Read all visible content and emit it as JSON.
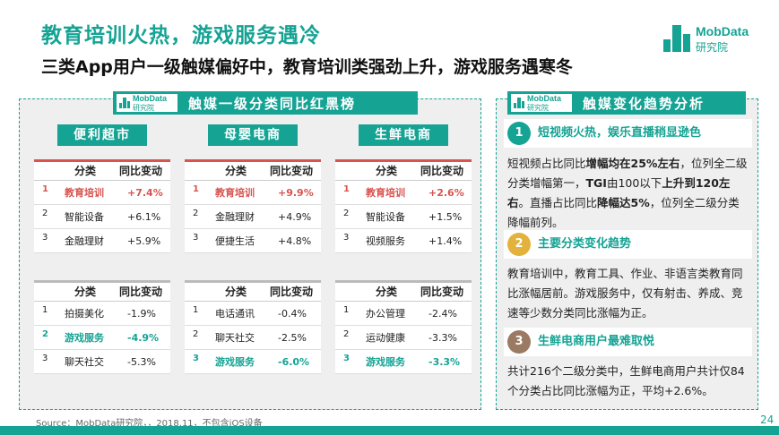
{
  "header": {
    "title": "教育培训火热，游戏服务遇冷",
    "subtitle": "三类App用户一级触媒偏好中，教育培训类强劲上升，游戏服务遇寒冬"
  },
  "logo": {
    "brand": "MobData",
    "sub": "研究院"
  },
  "left_panel": {
    "header_logo": {
      "brand": "MobData",
      "sub": "研究院"
    },
    "header_text": "触媒一级分类同比红黑榜",
    "categories": [
      {
        "label": "便利超市",
        "red_table": {
          "col1": "分类",
          "col2": "同比变动",
          "rows": [
            {
              "n": "1",
              "name": "教育培训",
              "value": "+7.4%"
            },
            {
              "n": "2",
              "name": "智能设备",
              "value": "+6.1%"
            },
            {
              "n": "3",
              "name": "金融理财",
              "value": "+5.9%"
            }
          ]
        },
        "black_table": {
          "col1": "分类",
          "col2": "同比变动",
          "rows": [
            {
              "n": "1",
              "name": "拍摄美化",
              "value": "-1.9%"
            },
            {
              "n": "2",
              "name": "游戏服务",
              "value": "-4.9%"
            },
            {
              "n": "3",
              "name": "聊天社交",
              "value": "-5.3%"
            }
          ]
        }
      },
      {
        "label": "母婴电商",
        "red_table": {
          "col1": "分类",
          "col2": "同比变动",
          "rows": [
            {
              "n": "1",
              "name": "教育培训",
              "value": "+9.9%"
            },
            {
              "n": "2",
              "name": "金融理财",
              "value": "+4.9%"
            },
            {
              "n": "3",
              "name": "便捷生活",
              "value": "+4.8%"
            }
          ]
        },
        "black_table": {
          "col1": "分类",
          "col2": "同比变动",
          "rows": [
            {
              "n": "1",
              "name": "电话通讯",
              "value": "-0.4%"
            },
            {
              "n": "2",
              "name": "聊天社交",
              "value": "-2.5%"
            },
            {
              "n": "3",
              "name": "游戏服务",
              "value": "-6.0%"
            }
          ]
        }
      },
      {
        "label": "生鲜电商",
        "red_table": {
          "col1": "分类",
          "col2": "同比变动",
          "rows": [
            {
              "n": "1",
              "name": "教育培训",
              "value": "+2.6%"
            },
            {
              "n": "2",
              "name": "智能设备",
              "value": "+1.5%"
            },
            {
              "n": "3",
              "name": "视频服务",
              "value": "+1.4%"
            }
          ]
        },
        "black_table": {
          "col1": "分类",
          "col2": "同比变动",
          "rows": [
            {
              "n": "1",
              "name": "办公管理",
              "value": "-2.4%"
            },
            {
              "n": "2",
              "name": "运动健康",
              "value": "-3.3%"
            },
            {
              "n": "3",
              "name": "游戏服务",
              "value": "-3.3%"
            }
          ]
        }
      }
    ]
  },
  "right_panel": {
    "header_logo": {
      "brand": "MobData",
      "sub": "研究院"
    },
    "header_text": "触媒变化趋势分析",
    "sections": [
      {
        "num": "1",
        "color": "#15a394",
        "title": "短视频火热，娱乐直播稍显逊色",
        "body": [
          {
            "t": "短视频占比同比",
            "b": false
          },
          {
            "t": "增幅均在25%左右",
            "b": true
          },
          {
            "t": "，位列全二级分类增幅第一，",
            "b": false
          },
          {
            "t": "TGI",
            "b": true
          },
          {
            "t": "由100以下",
            "b": false
          },
          {
            "t": "上升到120左右",
            "b": true
          },
          {
            "t": "。直播占比同比",
            "b": false
          },
          {
            "t": "降幅达5%",
            "b": true
          },
          {
            "t": "，位列全二级分类降幅前列。",
            "b": false
          }
        ]
      },
      {
        "num": "2",
        "color": "#e3b23c",
        "title": "主要分类变化趋势",
        "body": [
          {
            "t": "教育培训中，教育工具、作业、非语言类教育同比涨幅居前。游戏服务中，仅有射击、养成、竞速等少数分类同比涨幅为正。",
            "b": false
          }
        ]
      },
      {
        "num": "3",
        "color": "#9b7a63",
        "title": "生鲜电商用户最难取悦",
        "body": [
          {
            "t": "共计216个二级分类中，生鲜电商用户共计仅84个分类占比同比涨幅为正，平均+2.6%。",
            "b": false
          }
        ]
      }
    ]
  },
  "footer": {
    "source": "Source：MobData研究院，，2018.11，不包含iOS设备",
    "page": "24"
  },
  "colors": {
    "accent": "#15a394",
    "red": "#d9534f",
    "gold": "#e3b23c",
    "brown": "#9b7a63"
  },
  "highlight_rows": {
    "red": [
      [
        0,
        0
      ],
      [
        1,
        0
      ],
      [
        2,
        0
      ]
    ],
    "teal": [
      [
        0,
        1
      ],
      [
        1,
        2
      ],
      [
        2,
        2
      ]
    ]
  }
}
